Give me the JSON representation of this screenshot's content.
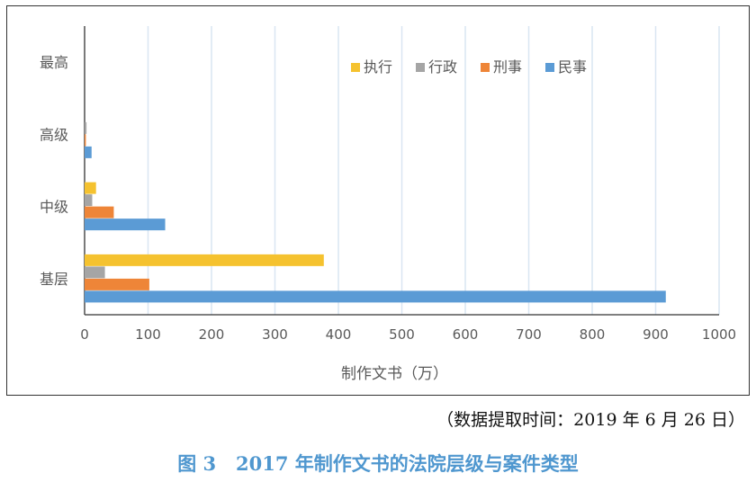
{
  "colors": {
    "执行": "#f5c22f",
    "行政": "#a5a5a5",
    "刑事": "#ee8538",
    "民事": "#5b9bd5",
    "grid": "#d9e6f2",
    "axis": "#333333",
    "text": "#595959"
  },
  "chart_data": {
    "type": "bar",
    "orientation": "horizontal",
    "categories": [
      "最高",
      "高级",
      "中级",
      "基层"
    ],
    "series": [
      {
        "name": "执行",
        "values": [
          0,
          0,
          18,
          377
        ]
      },
      {
        "name": "行政",
        "values": [
          0,
          3,
          12,
          32
        ]
      },
      {
        "name": "刑事",
        "values": [
          0,
          2,
          46,
          102
        ]
      },
      {
        "name": "民事",
        "values": [
          0,
          11,
          127,
          916
        ]
      }
    ],
    "legend_order": [
      "执行",
      "行政",
      "刑事",
      "民事"
    ],
    "legend_position": "top-right",
    "xlabel": "制作文书（万）",
    "xlim": [
      0,
      1000
    ],
    "xticks": [
      0,
      100,
      200,
      300,
      400,
      500,
      600,
      700,
      800,
      900,
      1000
    ],
    "grid": "vertical"
  },
  "source_note": "（数据提取时间：2019 年 6 月 26 日）",
  "figure_caption": "图 3   2017 年制作文书的法院层级与案件类型"
}
